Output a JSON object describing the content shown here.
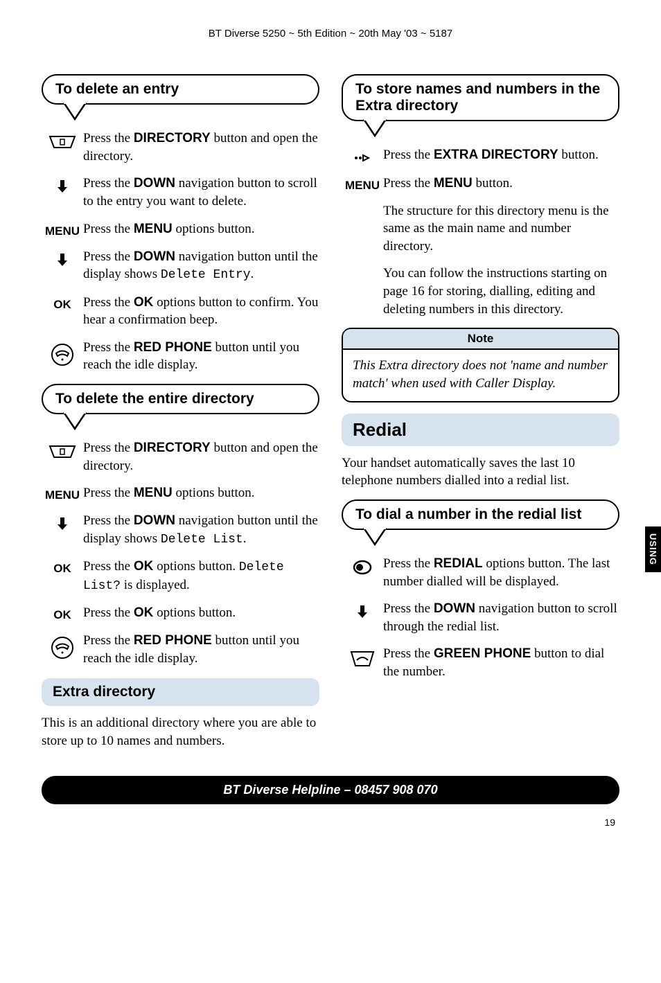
{
  "running_head": "BT Diverse 5250 ~ 5th Edition ~ 20th May '03 ~ 5187",
  "side_tab": "USING",
  "page_number": "19",
  "helpline": "BT Diverse Helpline – 08457 908 070",
  "colors": {
    "section_bg": "#d6e3ef",
    "text": "#000000",
    "helpline_bg": "#000000",
    "helpline_fg": "#ffffff"
  },
  "left": {
    "box1_title": "To delete an entry",
    "box1_steps": [
      {
        "icon": "directory",
        "text": "Press the <b>DIRECTORY</b> button and open the directory."
      },
      {
        "icon": "down",
        "text": "Press the <b>DOWN</b> navigation button to scroll to the entry you want to delete."
      },
      {
        "icon": "MENU",
        "text": "Press the <b>MENU</b> options button."
      },
      {
        "icon": "down",
        "text": "Press the <b>DOWN</b> navigation button until the display shows <span class='lcd'>Delete Entry</span>."
      },
      {
        "icon": "OK",
        "text": "Press the <b>OK</b> options button to confirm. You hear a confirmation beep."
      },
      {
        "icon": "redphone",
        "text": "Press the <b>RED PHONE</b> button until you reach the idle display."
      }
    ],
    "box2_title": "To delete the entire directory",
    "box2_steps": [
      {
        "icon": "directory",
        "text": "Press the <b>DIRECTORY</b> button and open the directory."
      },
      {
        "icon": "MENU",
        "text": "Press the <b>MENU</b> options button."
      },
      {
        "icon": "down",
        "text": "Press the <b>DOWN</b> navigation button until the display shows <span class='lcd'>Delete List</span>."
      },
      {
        "icon": "OK",
        "text": "Press the <b>OK</b> options button. <span class='lcd'>Delete List?</span> is displayed."
      },
      {
        "icon": "OK",
        "text": "Press the <b>OK</b> options button."
      },
      {
        "icon": "redphone",
        "text": "Press the <b>RED PHONE</b> button until you reach the idle display."
      }
    ],
    "extra_dir_heading": "Extra directory",
    "extra_dir_para": "This is an additional directory where you are able to store up to 10 names and numbers."
  },
  "right": {
    "box1_title": "To store names and numbers in the Extra directory",
    "box1_steps": [
      {
        "icon": "extradir",
        "text": "Press the <b>EXTRA DIRECTORY</b> button."
      },
      {
        "icon": "MENU",
        "text": "Press the <b>MENU</b> button."
      },
      {
        "icon": "",
        "text": "The structure for this directory menu is the same as the main name and number directory."
      },
      {
        "icon": "",
        "text": "You can follow the instructions starting on page 16 for storing, dialling, editing and deleting numbers in this directory."
      }
    ],
    "note_title": "Note",
    "note_body": "This Extra directory does not 'name and number match' when used with Caller Display.",
    "redial_heading": "Redial",
    "redial_para": "Your handset automatically saves the last 10 telephone numbers dialled into a redial list.",
    "box2_title": "To dial a number in the redial list",
    "box2_steps": [
      {
        "icon": "redial",
        "text": "Press the <b>REDIAL</b> options button. The last number dialled will be displayed."
      },
      {
        "icon": "down",
        "text": "Press the <b>DOWN</b> navigation button to scroll through the redial list."
      },
      {
        "icon": "greenphone",
        "text": "Press the <b>GREEN PHONE</b> button to dial the number."
      }
    ]
  }
}
